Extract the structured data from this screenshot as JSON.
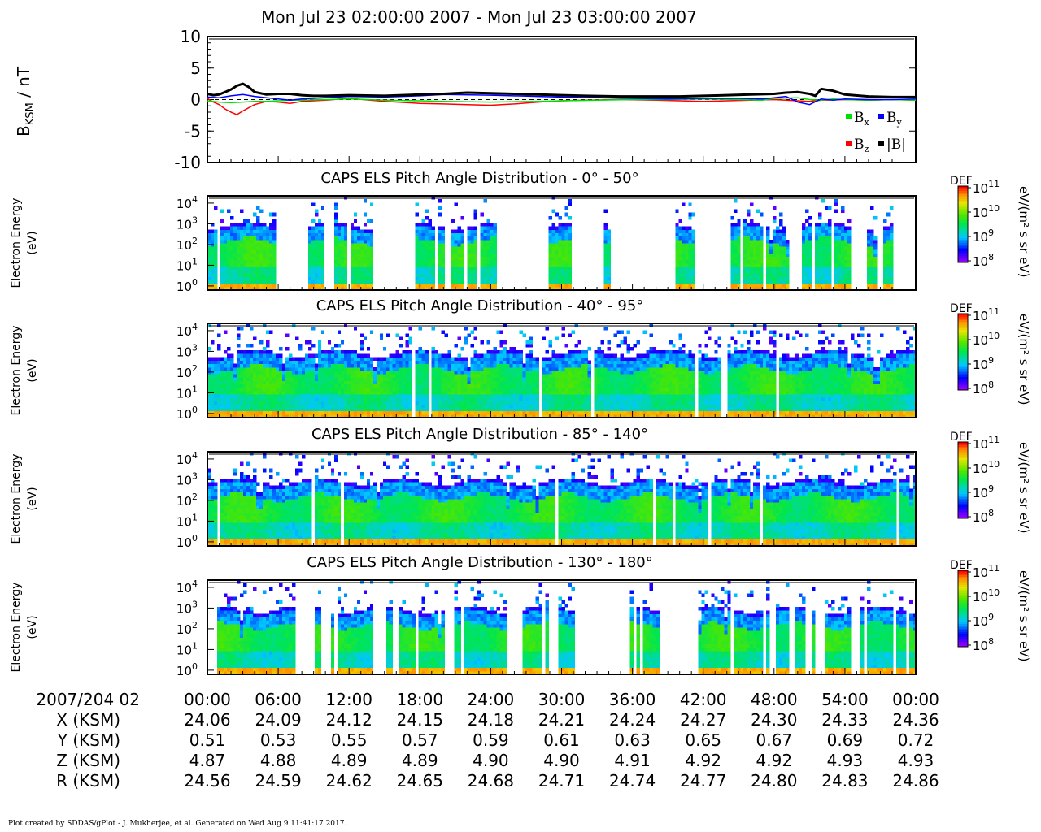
{
  "title": "Mon Jul 23 02:00:00 2007 - Mon Jul 23 03:00:00 2007",
  "footer": "Plot created by SDDAS/gPlot - J. Mukherjee, et al.  Generated on Wed Aug 9 11:41:17 2017.",
  "colors": {
    "bx": "#00e000",
    "by": "#0000ff",
    "bz": "#ff0000",
    "bmag": "#000000"
  },
  "chart_data": [
    {
      "type": "line",
      "ylabel_main": "B",
      "ylabel_sub": "KSM",
      "ylabel_unit": " / nT",
      "ylim": [
        -10,
        10
      ],
      "yticks": [
        "10",
        "5",
        "0",
        "-5",
        "-10"
      ],
      "yticks_values": [
        10,
        5,
        0,
        -5,
        -10
      ],
      "xlim": [
        0,
        60
      ],
      "legend": [
        {
          "sym": "B",
          "sub": "x",
          "color": "#00e000"
        },
        {
          "sym": "B",
          "sub": "y",
          "color": "#0000ff"
        },
        {
          "sym": "B",
          "sub": "z",
          "color": "#ff0000"
        },
        {
          "sym": "|B|",
          "sub": "",
          "color": "#000000"
        }
      ],
      "series": [
        {
          "name": "Bx",
          "x": [
            0,
            1,
            2,
            3,
            4,
            5,
            6,
            7,
            8,
            10,
            12,
            15,
            18,
            20,
            24,
            28,
            30,
            33,
            36,
            39,
            42,
            45,
            47,
            48,
            50,
            51,
            52,
            53,
            54,
            56,
            58,
            60
          ],
          "values": [
            -0.2,
            -0.4,
            -0.5,
            -0.4,
            -0.3,
            -0.3,
            -0.2,
            -0.1,
            -0.1,
            0.0,
            0.1,
            -0.1,
            -0.2,
            -0.3,
            -0.4,
            -0.3,
            -0.2,
            -0.1,
            0.0,
            0.0,
            0.1,
            0.0,
            -0.1,
            0.2,
            0.3,
            0.0,
            -0.1,
            0.1,
            0.0,
            -0.1,
            0.0,
            -0.1
          ]
        },
        {
          "name": "By",
          "x": [
            0,
            1,
            2,
            3,
            4,
            5,
            6,
            7,
            8,
            10,
            12,
            15,
            18,
            20,
            24,
            28,
            30,
            33,
            36,
            39,
            42,
            45,
            47,
            48,
            49,
            50,
            51,
            52,
            53,
            54,
            56,
            58,
            60
          ],
          "values": [
            0.4,
            0.3,
            0.6,
            0.8,
            0.5,
            0.3,
            0.1,
            -0.1,
            0.1,
            0.3,
            0.5,
            0.4,
            0.6,
            0.8,
            0.7,
            0.5,
            0.4,
            0.3,
            0.2,
            0.1,
            0.2,
            0.2,
            0.1,
            0.3,
            0.5,
            -0.4,
            -0.8,
            0.1,
            -0.1,
            0.1,
            0.0,
            0.0,
            0.1
          ]
        },
        {
          "name": "Bz",
          "x": [
            0,
            0.5,
            1,
            1.5,
            2,
            2.5,
            3,
            4,
            5,
            6,
            7,
            8,
            9,
            10,
            12,
            15,
            18,
            20,
            22,
            24,
            26,
            28,
            30,
            32,
            35,
            38,
            40,
            42,
            44,
            46,
            48,
            50,
            51,
            52,
            54,
            56,
            58,
            60
          ],
          "values": [
            0.2,
            -0.4,
            -0.8,
            -1.5,
            -2.0,
            -2.4,
            -1.8,
            -0.8,
            -0.3,
            -0.4,
            -0.6,
            -0.3,
            -0.2,
            -0.1,
            0.2,
            -0.3,
            -0.6,
            -0.7,
            -0.8,
            -0.9,
            -0.7,
            -0.4,
            -0.2,
            -0.1,
            0.0,
            -0.1,
            -0.2,
            -0.3,
            -0.2,
            -0.1,
            0.0,
            -0.2,
            -0.3,
            -0.1,
            0.0,
            -0.1,
            0.0,
            -0.1
          ]
        },
        {
          "name": "|B|",
          "x": [
            0,
            0.5,
            1,
            1.5,
            2,
            2.5,
            3,
            3.5,
            4,
            5,
            6,
            7,
            8,
            9,
            10,
            12,
            15,
            18,
            20,
            22,
            24,
            26,
            28,
            30,
            32,
            35,
            38,
            40,
            42,
            44,
            46,
            48,
            49,
            50,
            51,
            51.5,
            52,
            53,
            54,
            56,
            58,
            60
          ],
          "values": [
            0.9,
            0.7,
            0.8,
            1.2,
            1.6,
            2.2,
            2.5,
            2.0,
            1.2,
            0.8,
            0.9,
            0.9,
            0.7,
            0.6,
            0.6,
            0.7,
            0.6,
            0.8,
            0.9,
            1.1,
            1.0,
            0.9,
            0.8,
            0.7,
            0.6,
            0.5,
            0.5,
            0.5,
            0.6,
            0.7,
            0.8,
            0.9,
            1.1,
            1.2,
            0.9,
            0.6,
            1.7,
            1.4,
            0.8,
            0.5,
            0.4,
            0.4
          ]
        }
      ]
    },
    {
      "type": "heatmap",
      "title": "CAPS ELS Pitch Angle Distribution - 0° - 50°",
      "ylabel_line1": "Electron Energy",
      "ylabel_line2": "(eV)",
      "yticks": [
        "0",
        "1",
        "2",
        "3",
        "4"
      ],
      "colorbar_label": "DEF",
      "colorbar_unit": "eV/(m² s sr eV)",
      "colorbar_ticks": [
        "11",
        "10",
        "9",
        "8"
      ],
      "coverage_intervals": [
        [
          0,
          0.8
        ],
        [
          1,
          5.8
        ],
        [
          8.5,
          10.2
        ],
        [
          10.8,
          11.7
        ],
        [
          12.2,
          14
        ],
        [
          17.5,
          19.2
        ],
        [
          19.6,
          20.2
        ],
        [
          20.6,
          22.8
        ],
        [
          23.1,
          24.4
        ],
        [
          29,
          30.8
        ],
        [
          33.2,
          34.2
        ],
        [
          39.6,
          41.2
        ],
        [
          44.2,
          45
        ],
        [
          45.4,
          47.2
        ],
        [
          47.4,
          49.4
        ],
        [
          50.5,
          52.8
        ],
        [
          53.0,
          54.6
        ],
        [
          55.8,
          57.4
        ],
        [
          57.6,
          58
        ]
      ],
      "seed": 11
    },
    {
      "type": "heatmap",
      "title": "CAPS ELS Pitch Angle Distribution - 40° - 95°",
      "ylabel_line1": "Electron Energy",
      "ylabel_line2": "(eV)",
      "yticks": [
        "0",
        "1",
        "2",
        "3",
        "4"
      ],
      "colorbar_label": "DEF",
      "colorbar_unit": "eV/(m² s sr eV)",
      "colorbar_ticks": [
        "11",
        "10",
        "9",
        "8"
      ],
      "coverage_intervals": [
        [
          0,
          60
        ]
      ],
      "seed": 23
    },
    {
      "type": "heatmap",
      "title": "CAPS ELS Pitch Angle Distribution - 85° - 140°",
      "ylabel_line1": "Electron Energy",
      "ylabel_line2": "(eV)",
      "yticks": [
        "0",
        "1",
        "2",
        "3",
        "4"
      ],
      "colorbar_label": "DEF",
      "colorbar_unit": "eV/(m² s sr eV)",
      "colorbar_ticks": [
        "11",
        "10",
        "9",
        "8"
      ],
      "coverage_intervals": [
        [
          0,
          60
        ]
      ],
      "seed": 37
    },
    {
      "type": "heatmap",
      "title": "CAPS ELS Pitch Angle Distribution - 130° - 180°",
      "ylabel_line1": "Electron Energy",
      "ylabel_line2": "(eV)",
      "yticks": [
        "0",
        "1",
        "2",
        "3",
        "4"
      ],
      "colorbar_label": "DEF",
      "colorbar_unit": "eV/(m² s sr eV)",
      "colorbar_ticks": [
        "11",
        "10",
        "9",
        "8"
      ],
      "coverage_intervals": [
        [
          0.8,
          7.5
        ],
        [
          9.2,
          9.5
        ],
        [
          10.5,
          14
        ],
        [
          15.2,
          15.6
        ],
        [
          16.2,
          20
        ],
        [
          20.8,
          21.4
        ],
        [
          21.8,
          25.4
        ],
        [
          26.8,
          28.8
        ],
        [
          29.6,
          31.2
        ],
        [
          35.8,
          38.2
        ],
        [
          41.5,
          46.4
        ],
        [
          46.6,
          47.6
        ],
        [
          48.2,
          49.4
        ],
        [
          49.8,
          50.6
        ],
        [
          51.2,
          51.6
        ],
        [
          52.4,
          54.6
        ],
        [
          55.2,
          58.2
        ],
        [
          58.4,
          60
        ]
      ],
      "seed": 51
    },
    {
      "type": "table",
      "date_label": "2007/204 02",
      "times": [
        "00:00",
        "06:00",
        "12:00",
        "18:00",
        "24:00",
        "30:00",
        "36:00",
        "42:00",
        "48:00",
        "54:00",
        "00:00"
      ],
      "rows": [
        {
          "label": "X (KSM)",
          "values": [
            "24.06",
            "24.09",
            "24.12",
            "24.15",
            "24.18",
            "24.21",
            "24.24",
            "24.27",
            "24.30",
            "24.33",
            "24.36"
          ]
        },
        {
          "label": "Y (KSM)",
          "values": [
            "0.51",
            "0.53",
            "0.55",
            "0.57",
            "0.59",
            "0.61",
            "0.63",
            "0.65",
            "0.67",
            "0.69",
            "0.72"
          ]
        },
        {
          "label": "Z (KSM)",
          "values": [
            "4.87",
            "4.88",
            "4.89",
            "4.89",
            "4.90",
            "4.90",
            "4.91",
            "4.92",
            "4.92",
            "4.93",
            "4.93"
          ]
        },
        {
          "label": "R (KSM)",
          "values": [
            "24.56",
            "24.59",
            "24.62",
            "24.65",
            "24.68",
            "24.71",
            "24.74",
            "24.77",
            "24.80",
            "24.83",
            "24.86"
          ]
        }
      ]
    }
  ]
}
